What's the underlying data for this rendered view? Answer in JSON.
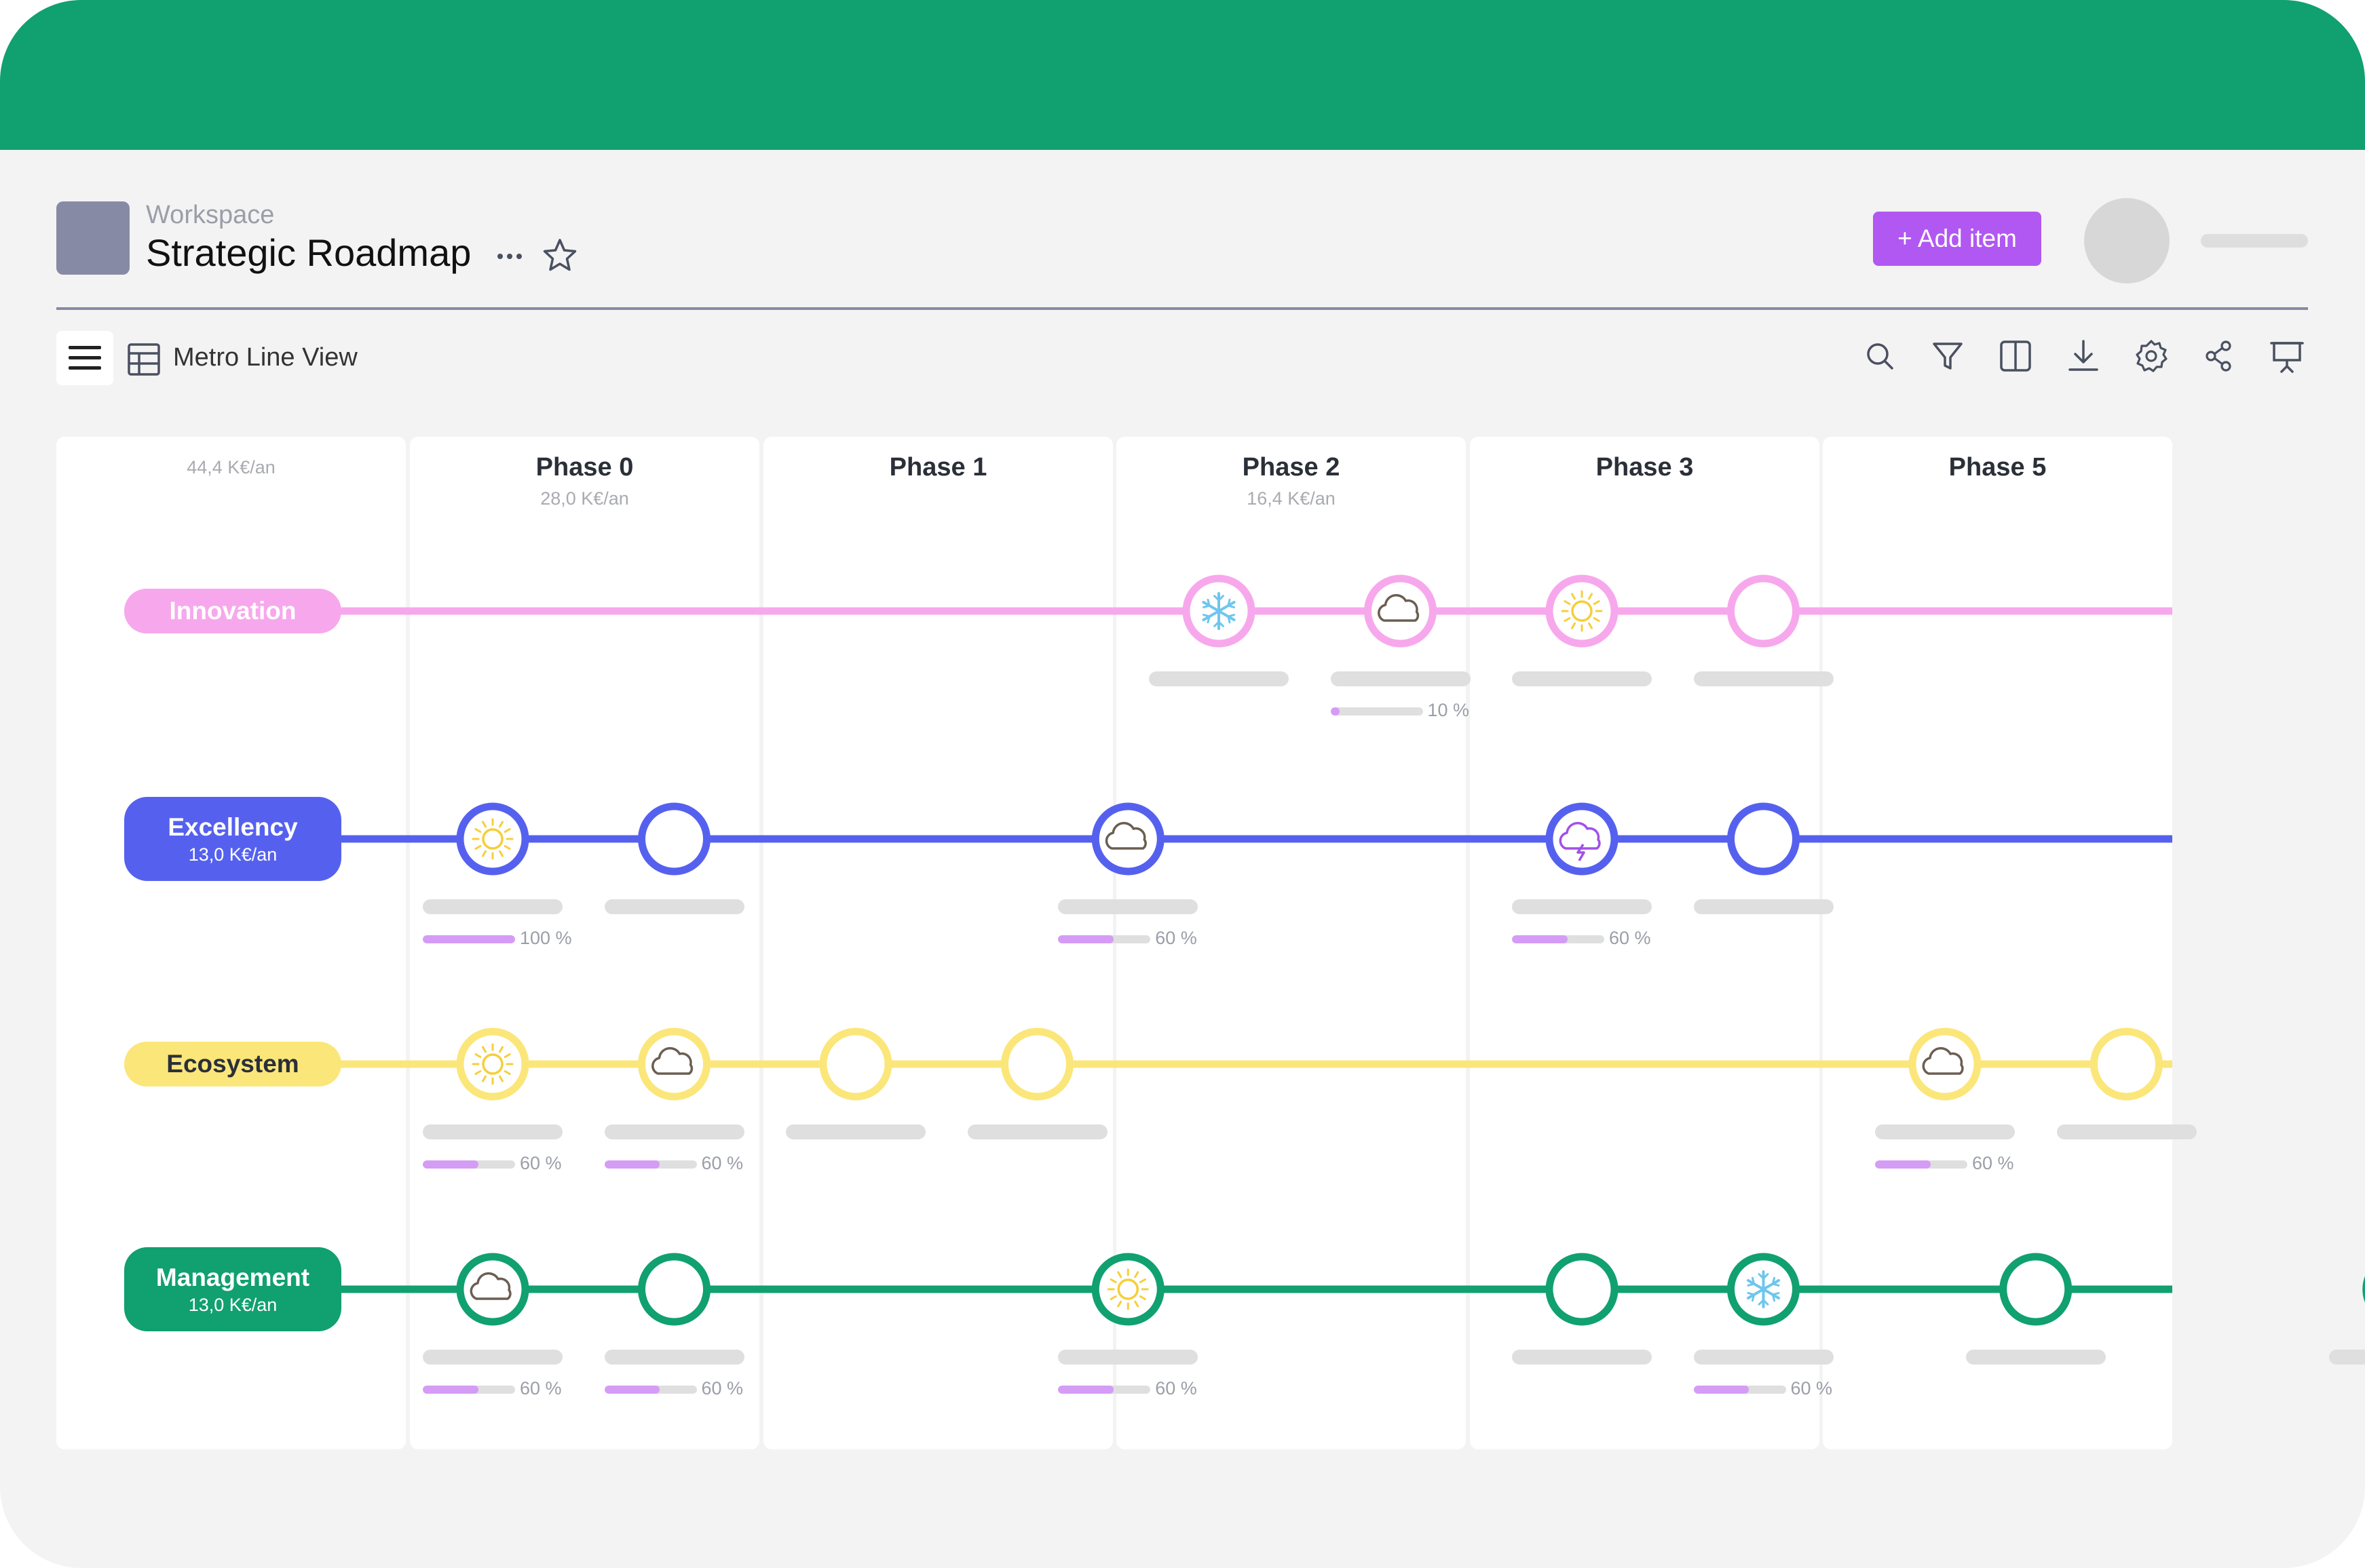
{
  "header": {
    "workspace_label": "Workspace",
    "title": "Strategic Roadmap",
    "add_item_label": "+ Add item"
  },
  "toolbar": {
    "view_label": "Metro Line View",
    "tools": [
      "search-icon",
      "filter-icon",
      "split-view-icon",
      "download-icon",
      "settings-icon",
      "share-icon",
      "presentation-icon"
    ]
  },
  "columns": [
    {
      "title": "",
      "cost": "44,4 K€/an"
    },
    {
      "title": "Phase 0",
      "cost": "28,0 K€/an"
    },
    {
      "title": "Phase 1",
      "cost": ""
    },
    {
      "title": "Phase 2",
      "cost": "16,4 K€/an"
    },
    {
      "title": "Phase 3",
      "cost": ""
    },
    {
      "title": "Phase 5",
      "cost": ""
    }
  ],
  "lines": [
    {
      "name": "Innovation",
      "cost": "",
      "color": "#f7a8ec",
      "text_color": "#ffffff",
      "stations": [
        {
          "slot": 4,
          "icon": "snowflake-icon",
          "progress": null
        },
        {
          "slot": 5,
          "icon": "cloud-icon",
          "progress": 10,
          "progress_label": "10 %"
        },
        {
          "slot": 6,
          "icon": "sun-icon",
          "progress": null
        },
        {
          "slot": 7,
          "icon": "",
          "progress": null
        }
      ]
    },
    {
      "name": "Excellency",
      "cost": "13,0 K€/an",
      "color": "#5561ee",
      "text_color": "#ffffff",
      "stations": [
        {
          "slot": 0,
          "icon": "sun-icon",
          "progress": 100,
          "progress_label": "100 %"
        },
        {
          "slot": 1,
          "icon": "",
          "progress": null
        },
        {
          "slot": 3.5,
          "icon": "cloud-icon",
          "progress": 60,
          "progress_label": "60 %"
        },
        {
          "slot": 6,
          "icon": "storm-icon",
          "progress": 60,
          "progress_label": "60 %"
        },
        {
          "slot": 7,
          "icon": "",
          "progress": null
        }
      ]
    },
    {
      "name": "Ecosystem",
      "cost": "",
      "color": "#fbe67a",
      "text_color": "#2a2f38",
      "stations": [
        {
          "slot": 0,
          "icon": "sun-icon",
          "progress": 60,
          "progress_label": "60 %"
        },
        {
          "slot": 1,
          "icon": "cloud-icon",
          "progress": 60,
          "progress_label": "60 %"
        },
        {
          "slot": 2,
          "icon": "",
          "progress": null
        },
        {
          "slot": 3,
          "icon": "",
          "progress": null
        },
        {
          "slot": 8,
          "icon": "cloud-icon",
          "progress": 60,
          "progress_label": "60 %"
        },
        {
          "slot": 9,
          "icon": "",
          "progress": null
        }
      ]
    },
    {
      "name": "Management",
      "cost": "13,0 K€/an",
      "color": "#11a070",
      "text_color": "#ffffff",
      "stations": [
        {
          "slot": 0,
          "icon": "cloud-icon",
          "progress": 60,
          "progress_label": "60 %"
        },
        {
          "slot": 1,
          "icon": "",
          "progress": 60,
          "progress_label": "60 %"
        },
        {
          "slot": 3.5,
          "icon": "sun-icon",
          "progress": 60,
          "progress_label": "60 %"
        },
        {
          "slot": 6,
          "icon": "",
          "progress": null
        },
        {
          "slot": 7,
          "icon": "snowflake-icon",
          "progress": 60,
          "progress_label": "60 %"
        },
        {
          "slot": 8.5,
          "icon": "",
          "progress": null
        },
        {
          "slot": 10.5,
          "icon": "",
          "progress": null
        }
      ]
    }
  ]
}
